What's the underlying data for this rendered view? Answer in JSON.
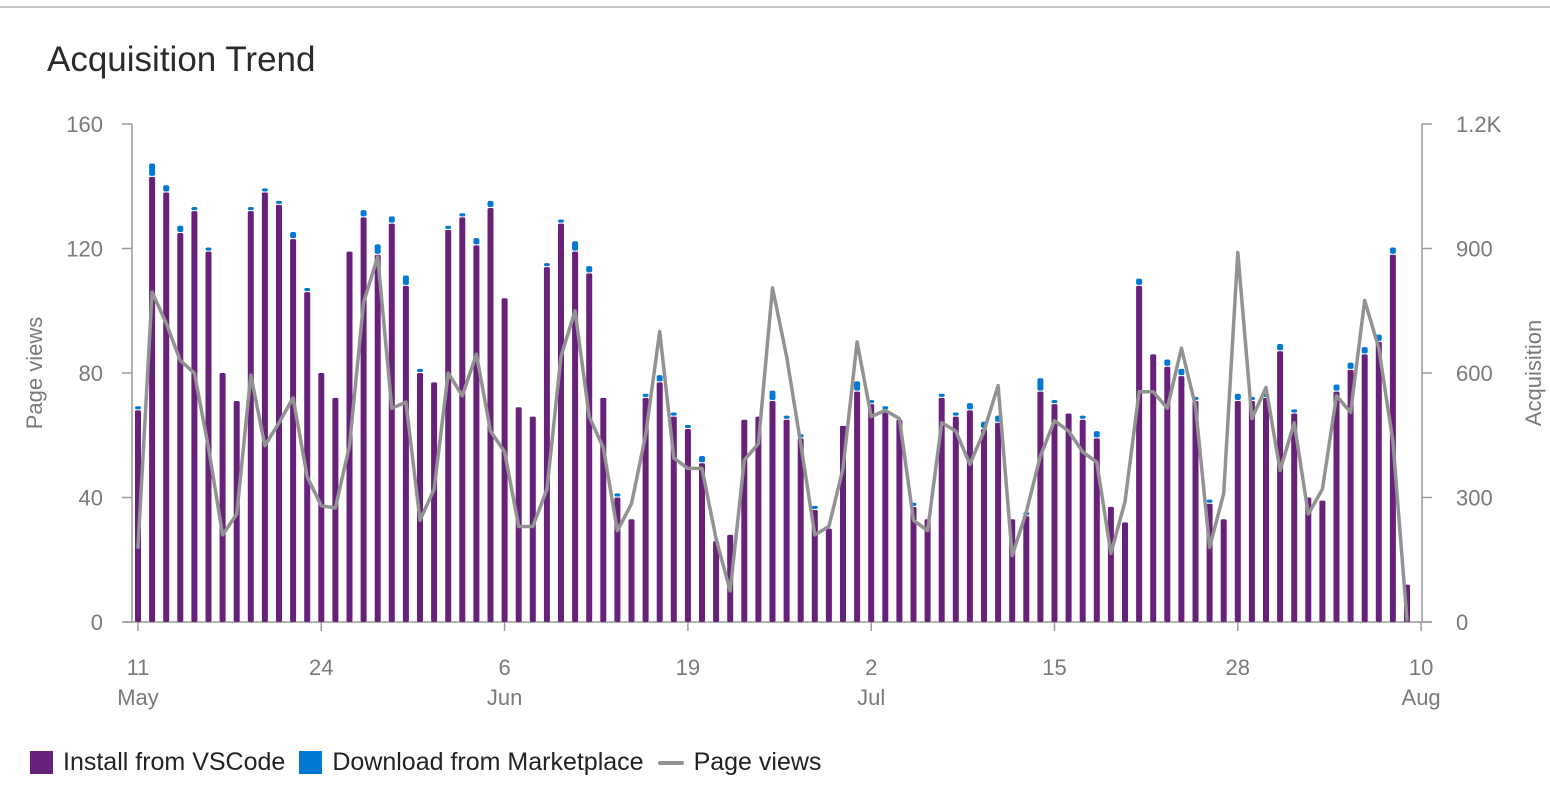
{
  "title": "Acquisition Trend",
  "colors": {
    "install": "#68217a",
    "download": "#0078d4",
    "pageviews": "#929292",
    "axis": "#9a9a9a",
    "text": "#7a7a7a"
  },
  "legend": {
    "install": "Install from VSCode",
    "download": "Download from Marketplace",
    "pageviews": "Page views"
  },
  "chart_data": {
    "type": "bar",
    "stacked": true,
    "title": "Acquisition Trend",
    "ylabel_left": "Page views",
    "ylabel_right": "Acquisition",
    "ylim_left": [
      0,
      160
    ],
    "ylim_right": [
      0,
      1200
    ],
    "yticks_left": [
      "0",
      "40",
      "80",
      "120",
      "160"
    ],
    "yticks_right": [
      "0",
      "300",
      "600",
      "900",
      "1.2K"
    ],
    "xticks": [
      {
        "day": 0,
        "label": "11",
        "sublabel": "May"
      },
      {
        "day": 13,
        "label": "24",
        "sublabel": ""
      },
      {
        "day": 26,
        "label": "6",
        "sublabel": "Jun"
      },
      {
        "day": 39,
        "label": "19",
        "sublabel": ""
      },
      {
        "day": 52,
        "label": "2",
        "sublabel": "Jul"
      },
      {
        "day": 65,
        "label": "15",
        "sublabel": ""
      },
      {
        "day": 78,
        "label": "28",
        "sublabel": ""
      },
      {
        "day": 91,
        "label": "10",
        "sublabel": "Aug"
      }
    ],
    "start_date": "2023-05-11",
    "grid": false,
    "legend_position": "bottom-left",
    "series": [
      {
        "name": "Install from VSCode",
        "type": "bar",
        "values": [
          68,
          143,
          138,
          125,
          132,
          119,
          80,
          71,
          132,
          138,
          134,
          123,
          106,
          80,
          72,
          119,
          130,
          118,
          128,
          108,
          80,
          77,
          126,
          130,
          121,
          133,
          104,
          69,
          66,
          114,
          128,
          119,
          112,
          72,
          40,
          33,
          72,
          77,
          66,
          62,
          51,
          26,
          28,
          65,
          66,
          71,
          65,
          59,
          36,
          30,
          63,
          74,
          70,
          68,
          65,
          37,
          33,
          72,
          66,
          68,
          62,
          64,
          33,
          34,
          74,
          70,
          67,
          65,
          59,
          37,
          32,
          108,
          86,
          82,
          79,
          71,
          38,
          33,
          71,
          71,
          72,
          87,
          67,
          40,
          39,
          74,
          81,
          86,
          90,
          118,
          12
        ]
      },
      {
        "name": "Download from Marketplace",
        "type": "bar",
        "values": [
          1,
          4,
          2,
          2,
          1,
          1,
          0,
          0,
          1,
          1,
          1,
          2,
          1,
          0,
          0,
          0,
          2,
          3,
          2,
          3,
          1,
          0,
          1,
          1,
          2,
          2,
          0,
          0,
          0,
          1,
          1,
          3,
          2,
          0,
          1,
          0,
          1,
          2,
          1,
          1,
          2,
          0,
          0,
          0,
          0,
          3,
          1,
          1,
          1,
          0,
          0,
          3,
          1,
          1,
          0,
          1,
          0,
          1,
          1,
          2,
          2,
          2,
          0,
          1,
          4,
          1,
          0,
          1,
          2,
          0,
          0,
          2,
          0,
          2,
          2,
          1,
          1,
          0,
          2,
          1,
          1,
          2,
          1,
          0,
          0,
          2,
          2,
          2,
          2,
          2,
          0
        ]
      },
      {
        "name": "Page views",
        "type": "line",
        "values": [
          180,
          795,
          720,
          630,
          600,
          420,
          210,
          260,
          595,
          425,
          480,
          540,
          350,
          280,
          275,
          425,
          770,
          880,
          515,
          530,
          245,
          320,
          600,
          545,
          645,
          460,
          410,
          230,
          230,
          320,
          640,
          750,
          495,
          420,
          220,
          285,
          450,
          700,
          395,
          370,
          370,
          200,
          75,
          390,
          430,
          805,
          640,
          430,
          210,
          230,
          370,
          675,
          495,
          510,
          490,
          245,
          220,
          480,
          460,
          380,
          460,
          570,
          160,
          265,
          400,
          485,
          460,
          410,
          385,
          165,
          290,
          555,
          555,
          515,
          660,
          520,
          180,
          310,
          890,
          490,
          565,
          365,
          480,
          260,
          320,
          545,
          505,
          775,
          660,
          435,
          5
        ]
      }
    ]
  }
}
